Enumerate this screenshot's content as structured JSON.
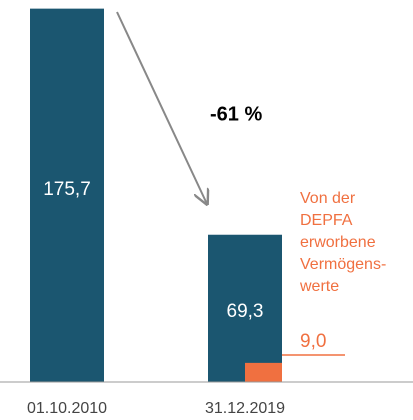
{
  "chart_data": {
    "type": "bar",
    "categories": [
      "01.10.2010",
      "31.12.2019"
    ],
    "values": [
      175.7,
      69.3
    ],
    "value_labels": [
      "175,7",
      "69,3"
    ],
    "color": "#1b5670",
    "segment": {
      "values": [
        null,
        9.0
      ],
      "value_labels": [
        null,
        "9,0"
      ],
      "color": "#f07040"
    },
    "ylim": [
      0,
      176
    ],
    "annotations": {
      "change": "-61 %",
      "segment_note": [
        "Von der",
        "DEPFA",
        "erworbene",
        "Vermögens-",
        "werte"
      ]
    }
  }
}
